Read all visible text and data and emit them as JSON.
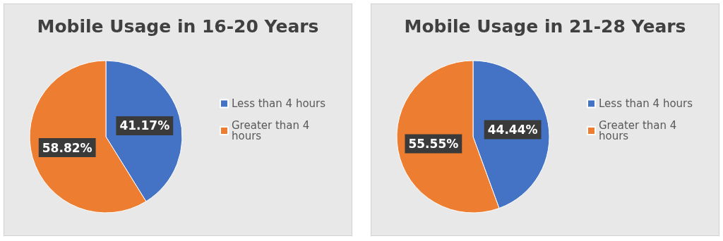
{
  "chart_data": [
    {
      "type": "pie",
      "title": "Mobile Usage in 16-20 Years",
      "categories": [
        "Less than 4 hours",
        "Greater than 4 hours"
      ],
      "values": [
        41.17,
        58.82
      ],
      "colors": [
        "#4472c4",
        "#ed7d31"
      ],
      "value_labels": [
        "41.17%",
        "58.82%"
      ],
      "legend": "right"
    },
    {
      "type": "pie",
      "title": "Mobile Usage in 21-28 Years",
      "categories": [
        "Less than 4 hours",
        "Greater than 4 hours"
      ],
      "values": [
        44.44,
        55.55
      ],
      "colors": [
        "#4472c4",
        "#ed7d31"
      ],
      "value_labels": [
        "44.44%",
        "55.55%"
      ],
      "legend": "right"
    }
  ]
}
